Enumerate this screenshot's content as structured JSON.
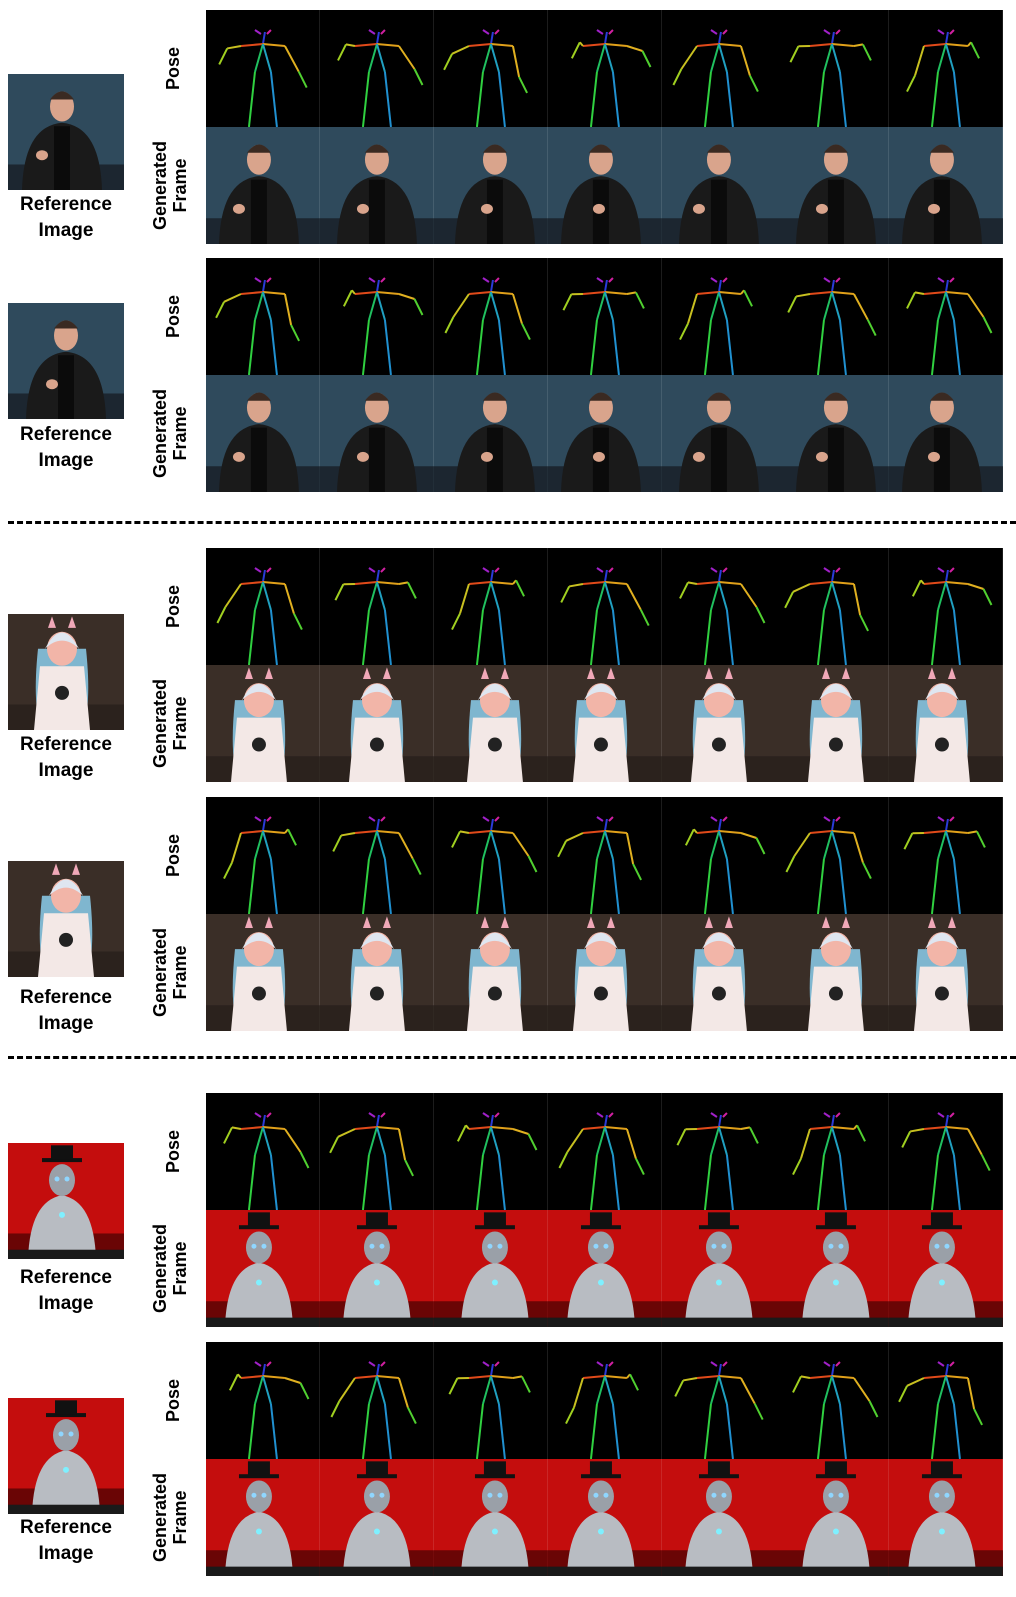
{
  "labels": {
    "reference": "Reference\nImage",
    "pose": "Pose",
    "generated": "Generated\nFrame"
  },
  "groups": [
    {
      "subject": "man-in-leather-jacket",
      "colors": {
        "bg": "#2f4a5c",
        "floor": "#1c2630",
        "figure": "#1a1a1a",
        "skin": "#d9a48c",
        "accent": "#3a4b58"
      },
      "rows": [
        {
          "ref": "ref-man-1",
          "frames": 7
        },
        {
          "ref": "ref-man-2",
          "frames": 7
        }
      ]
    },
    {
      "subject": "anime-girl",
      "colors": {
        "bg": "#3a2e27",
        "floor": "#2b221d",
        "figure": "#f3e8e6",
        "skin": "#f2b5a8",
        "accent": "#7fb6cf"
      },
      "rows": [
        {
          "ref": "ref-girl-1",
          "frames": 7
        },
        {
          "ref": "ref-girl-2",
          "frames": 7
        }
      ]
    },
    {
      "subject": "robot-with-hat",
      "colors": {
        "bg": "#c40d0d",
        "floor": "#6a0505",
        "figure": "#b8bcc2",
        "skin": "#8fd6ff",
        "accent": "#111111"
      },
      "rows": [
        {
          "ref": "ref-robot-1",
          "frames": 7
        },
        {
          "ref": "ref-robot-2",
          "frames": 7
        }
      ]
    }
  ]
}
